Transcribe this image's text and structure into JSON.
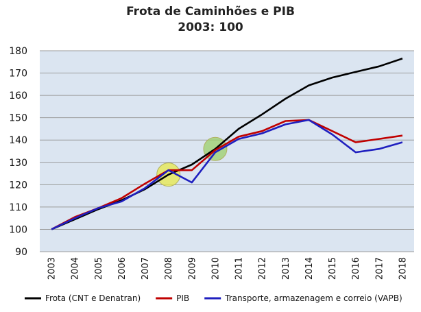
{
  "chart_data": {
    "type": "line",
    "title": "Frota de Caminhões e PIB",
    "subtitle": "2003: 100",
    "x": [
      "2003",
      "2004",
      "2005",
      "2006",
      "2007",
      "2008",
      "2009",
      "2010",
      "2011",
      "2012",
      "2013",
      "2014",
      "2015",
      "2016",
      "2017",
      "2018"
    ],
    "ylim": [
      90,
      180
    ],
    "yticks": [
      90,
      100,
      110,
      120,
      130,
      140,
      150,
      160,
      170,
      180
    ],
    "grid": true,
    "plot_background": "#dbe5f1",
    "legend_position": "bottom",
    "series": [
      {
        "name": "Frota (CNT e Denatran)",
        "color": "#000000",
        "values": [
          100,
          104.5,
          109,
          113,
          118,
          124.5,
          129,
          136,
          145,
          151.5,
          158.5,
          164.5,
          168,
          170.5,
          173,
          176.5
        ]
      },
      {
        "name": "PIB",
        "color": "#c00000",
        "values": [
          100,
          105.5,
          109.5,
          114,
          120.5,
          126.5,
          126.5,
          135.5,
          141.5,
          144,
          148.5,
          149,
          144,
          139,
          140.5,
          142
        ]
      },
      {
        "name": "Transporte, armazenagem e correio (VAPB)",
        "color": "#1f1fbf",
        "values": [
          100,
          105,
          109.5,
          112.5,
          118.5,
          126.5,
          121,
          134.5,
          140.5,
          143,
          147,
          149,
          142.5,
          134.5,
          136,
          139
        ]
      }
    ],
    "annotations": [
      {
        "x": "2008",
        "y": 124.5,
        "color": "#e8e84a"
      },
      {
        "x": "2010",
        "y": 136,
        "color": "#9ccf6a"
      }
    ]
  }
}
